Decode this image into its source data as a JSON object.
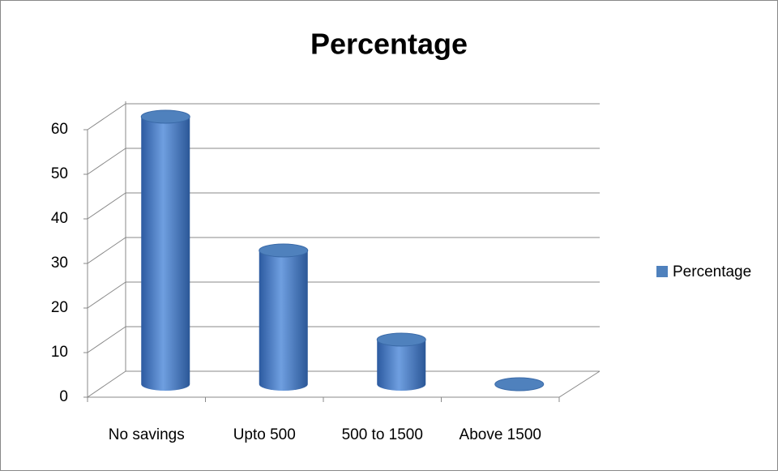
{
  "chart_data": {
    "type": "bar3d",
    "title": "Percentage",
    "categories": [
      "No savings",
      "Upto 500",
      "500 to 1500",
      "Above 1500"
    ],
    "series": [
      {
        "name": "Percentage",
        "color": "#4f81bd",
        "values": [
          60,
          30,
          10,
          0
        ]
      }
    ],
    "ylim": [
      0,
      60
    ],
    "yticks": [
      0,
      10,
      20,
      30,
      40,
      50,
      60
    ],
    "grid": true,
    "legend": "right"
  }
}
